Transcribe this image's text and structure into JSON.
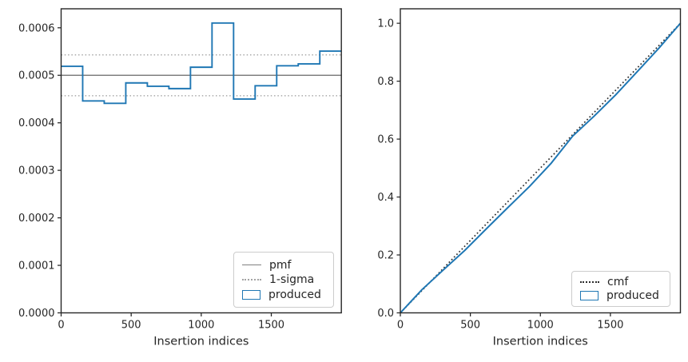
{
  "figure": {
    "background": "#ffffff",
    "axis_color": "#262626",
    "tick_label_color": "#262626"
  },
  "chart_data": [
    {
      "type": "step-histogram",
      "name": "pmf-comparison-plot",
      "xlabel": "Insertion indices",
      "ylabel": "",
      "xlim": [
        0,
        2000
      ],
      "ylim": [
        0,
        0.00064
      ],
      "xticks": {
        "values": [
          0,
          500,
          1000,
          1500
        ],
        "labels": [
          "0",
          "500",
          "1000",
          "1500"
        ]
      },
      "yticks": {
        "values": [
          0,
          0.0001,
          0.0002,
          0.0003,
          0.0004,
          0.0005,
          0.0006
        ],
        "labels": [
          "0.0000",
          "0.0001",
          "0.0002",
          "0.0003",
          "0.0004",
          "0.0005",
          "0.0006"
        ]
      },
      "grid": false,
      "pmf_value": 0.0005,
      "sigma_upper": 0.000543,
      "sigma_lower": 0.000457,
      "bin_edges": [
        0,
        153.8,
        307.7,
        461.5,
        615.4,
        769.2,
        923.1,
        1076.9,
        1230.8,
        1384.6,
        1538.5,
        1692.3,
        1846.2,
        2000
      ],
      "bin_values": [
        0.000519,
        0.000446,
        0.000441,
        0.000484,
        0.000477,
        0.000472,
        0.000517,
        0.00061,
        0.00045,
        0.000478,
        0.00052,
        0.000524,
        0.000551
      ],
      "colors": {
        "produced": "#1f77b4",
        "pmf": "#7f7f7f",
        "sigma": "#a3a3a3"
      },
      "legend": {
        "position": "lower right",
        "items": [
          {
            "label": "pmf",
            "swatch": "solid-gray-line"
          },
          {
            "label": "1-sigma",
            "swatch": "dotted-gray-line"
          },
          {
            "label": "produced",
            "swatch": "blue-patch"
          }
        ]
      }
    },
    {
      "type": "line",
      "name": "cmf-comparison-plot",
      "xlabel": "Insertion indices",
      "ylabel": "",
      "xlim": [
        0,
        2000
      ],
      "ylim": [
        0,
        1.05
      ],
      "xticks": {
        "values": [
          0,
          500,
          1000,
          1500
        ],
        "labels": [
          "0",
          "500",
          "1000",
          "1500"
        ]
      },
      "yticks": {
        "values": [
          0,
          0.2,
          0.4,
          0.6,
          0.8,
          1.0
        ],
        "labels": [
          "0.0",
          "0.2",
          "0.4",
          "0.6",
          "0.8",
          "1.0"
        ]
      },
      "grid": false,
      "cmf_line": {
        "x": [
          0,
          2000
        ],
        "y": [
          0,
          1.0
        ]
      },
      "produced": {
        "x": [
          0,
          153.8,
          307.7,
          461.5,
          615.4,
          769.2,
          923.1,
          1076.9,
          1230.8,
          1384.6,
          1538.5,
          1692.3,
          1846.2,
          2000
        ],
        "y": [
          0,
          0.0799,
          0.1485,
          0.2163,
          0.2908,
          0.3642,
          0.4369,
          0.5166,
          0.6105,
          0.6797,
          0.7532,
          0.8332,
          0.9139,
          1.0
        ]
      },
      "colors": {
        "produced": "#1f77b4",
        "cmf": "#2b2b2b"
      },
      "legend": {
        "position": "lower right",
        "items": [
          {
            "label": "cmf",
            "swatch": "dotted-black-line"
          },
          {
            "label": "produced",
            "swatch": "blue-patch"
          }
        ]
      }
    }
  ]
}
